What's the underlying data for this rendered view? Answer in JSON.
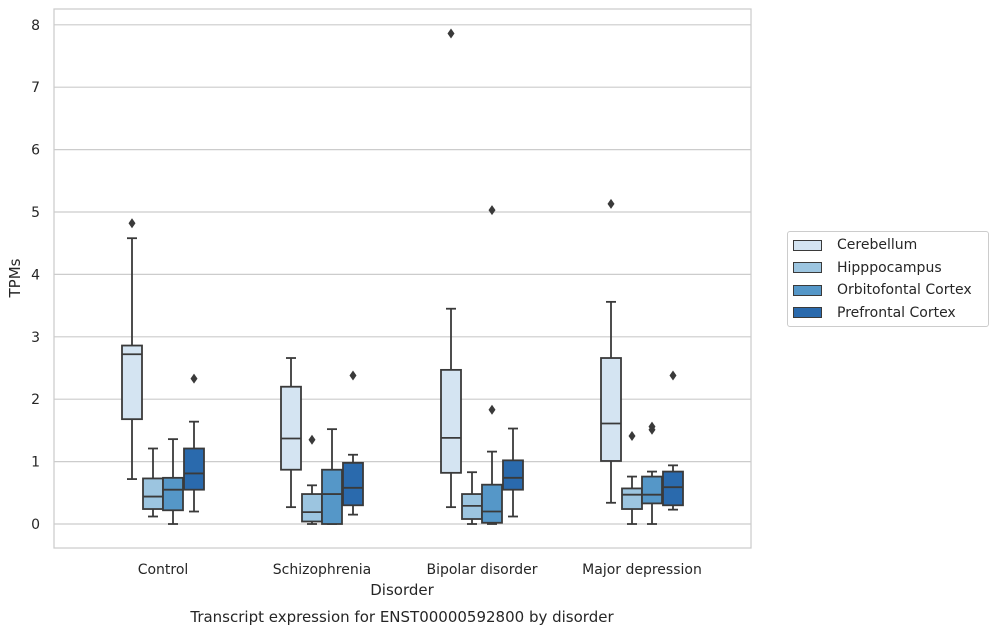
{
  "chart_data": {
    "type": "box",
    "title": "Transcript expression for ENST00000592800 by disorder",
    "xlabel": "Disorder",
    "ylabel": "TPMs",
    "ylim": [
      -0.38,
      8.28
    ],
    "yticks": [
      0,
      1,
      2,
      3,
      4,
      5,
      6,
      7,
      8
    ],
    "grid": "horizontal",
    "legend_position": "right",
    "categories": [
      "Control",
      "Schizophrenia",
      "Bipolar disorder",
      "Major depression"
    ],
    "series": [
      {
        "name": "Cerebellum",
        "color": "#d4e4f2",
        "boxes": [
          {
            "min": 0.72,
            "q1": 1.68,
            "median": 2.72,
            "q3": 2.86,
            "max": 4.58,
            "outliers": [
              4.82
            ]
          },
          {
            "min": 0.27,
            "q1": 0.87,
            "median": 1.37,
            "q3": 2.2,
            "max": 2.66,
            "outliers": []
          },
          {
            "min": 0.27,
            "q1": 0.82,
            "median": 1.38,
            "q3": 2.47,
            "max": 3.45,
            "outliers": [
              7.86
            ]
          },
          {
            "min": 0.34,
            "q1": 1.01,
            "median": 1.61,
            "q3": 2.66,
            "max": 3.56,
            "outliers": [
              5.13
            ]
          }
        ]
      },
      {
        "name": "Hipppocampus",
        "color": "#9cc5e0",
        "boxes": [
          {
            "min": 0.12,
            "q1": 0.24,
            "median": 0.44,
            "q3": 0.73,
            "max": 1.21,
            "outliers": []
          },
          {
            "min": 0.0,
            "q1": 0.04,
            "median": 0.19,
            "q3": 0.48,
            "max": 0.62,
            "outliers": [
              1.35
            ]
          },
          {
            "min": 0.0,
            "q1": 0.08,
            "median": 0.29,
            "q3": 0.48,
            "max": 0.83,
            "outliers": []
          },
          {
            "min": 0.0,
            "q1": 0.24,
            "median": 0.47,
            "q3": 0.57,
            "max": 0.76,
            "outliers": [
              1.41
            ]
          }
        ]
      },
      {
        "name": "Orbitofontal Cortex",
        "color": "#5597c8",
        "boxes": [
          {
            "min": 0.0,
            "q1": 0.22,
            "median": 0.55,
            "q3": 0.74,
            "max": 1.36,
            "outliers": []
          },
          {
            "min": 0.0,
            "q1": 0.0,
            "median": 0.48,
            "q3": 0.87,
            "max": 1.52,
            "outliers": []
          },
          {
            "min": 0.0,
            "q1": 0.02,
            "median": 0.2,
            "q3": 0.63,
            "max": 1.16,
            "outliers": [
              1.83,
              5.03
            ]
          },
          {
            "min": 0.0,
            "q1": 0.33,
            "median": 0.47,
            "q3": 0.76,
            "max": 0.84,
            "outliers": [
              1.51,
              1.56
            ]
          }
        ]
      },
      {
        "name": "Prefrontal Cortex",
        "color": "#2a6aad",
        "boxes": [
          {
            "min": 0.2,
            "q1": 0.55,
            "median": 0.81,
            "q3": 1.21,
            "max": 1.64,
            "outliers": [
              2.33
            ]
          },
          {
            "min": 0.15,
            "q1": 0.3,
            "median": 0.58,
            "q3": 0.98,
            "max": 1.11,
            "outliers": [
              2.38
            ]
          },
          {
            "min": 0.12,
            "q1": 0.55,
            "median": 0.74,
            "q3": 1.02,
            "max": 1.53,
            "outliers": []
          },
          {
            "min": 0.23,
            "q1": 0.3,
            "median": 0.59,
            "q3": 0.84,
            "max": 0.94,
            "outliers": [
              2.38
            ]
          }
        ]
      }
    ]
  }
}
